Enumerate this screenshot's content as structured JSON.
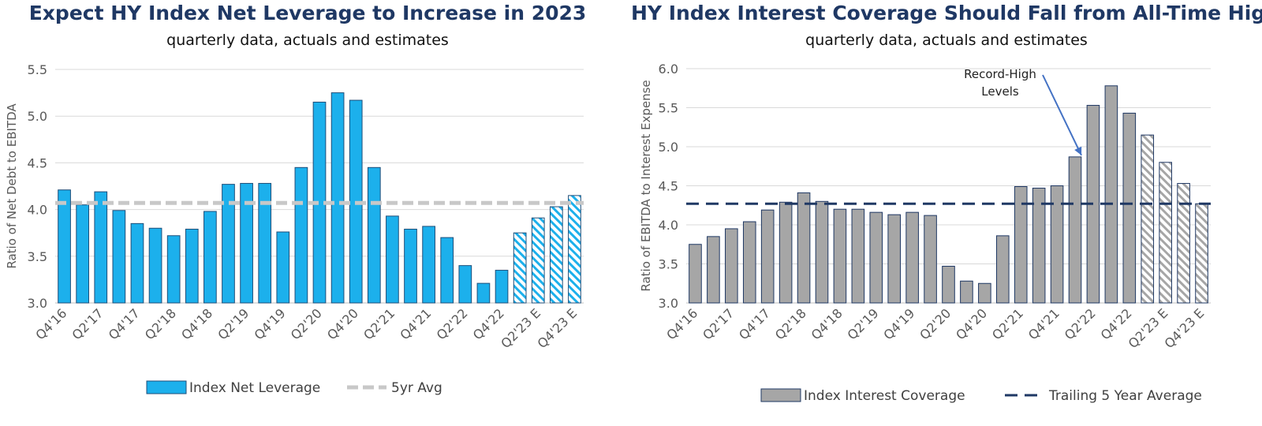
{
  "chart_data": [
    {
      "type": "bar",
      "title": "Expect HY Index Net Leverage to Increase in 2023",
      "subtitle": "quarterly data, actuals and estimates",
      "ylabel": "Ratio of Net Debt to EBITDA",
      "xlabel": "",
      "ylim": [
        3.0,
        5.5
      ],
      "yticks": [
        "3.0",
        "3.5",
        "4.0",
        "4.5",
        "5.0",
        "5.5"
      ],
      "grid": true,
      "legend_position": "bottom",
      "categories": [
        "Q4'16",
        "Q1'17",
        "Q2'17",
        "Q3'17",
        "Q4'17",
        "Q1'18",
        "Q2'18",
        "Q3'18",
        "Q4'18",
        "Q1'19",
        "Q2'19",
        "Q3'19",
        "Q4'19",
        "Q1'20",
        "Q2'20",
        "Q3'20",
        "Q4'20",
        "Q1'21",
        "Q2'21",
        "Q3'21",
        "Q4'21",
        "Q1'22",
        "Q2'22",
        "Q3'22",
        "Q4'22",
        "Q1'23 E",
        "Q2'23 E",
        "Q3'23 E",
        "Q4'23 E"
      ],
      "visible_tick_labels": [
        "Q4'16",
        "Q2'17",
        "Q4'17",
        "Q2'18",
        "Q4'18",
        "Q2'19",
        "Q4'19",
        "Q2'20",
        "Q4'20",
        "Q2'21",
        "Q4'21",
        "Q2'22",
        "Q4'22",
        "Q2'23 E",
        "Q4'23 E"
      ],
      "series": [
        {
          "name": "Index Net Leverage",
          "values": [
            4.21,
            4.05,
            4.19,
            3.99,
            3.85,
            3.8,
            3.72,
            3.79,
            3.98,
            4.27,
            4.28,
            4.28,
            3.76,
            4.45,
            5.15,
            5.25,
            5.17,
            4.45,
            3.93,
            3.79,
            3.82,
            3.7,
            3.4,
            3.21,
            3.35,
            3.75,
            3.91,
            4.03,
            4.15
          ],
          "estimate_start_index": 25,
          "color": "#1cb0ec",
          "edge_color": "#1f4e79"
        },
        {
          "name": "5yr Avg",
          "value": 4.07,
          "color": "#c8c8c8",
          "style": "dashed"
        }
      ]
    },
    {
      "type": "bar",
      "title": "HY Index Interest Coverage Should Fall from All-Time Highs",
      "subtitle": "quarterly data, actuals and estimates",
      "ylabel": "Ratio of EBITDA to Interest Expense",
      "xlabel": "",
      "ylim": [
        3.0,
        6.0
      ],
      "yticks": [
        "3.0",
        "3.5",
        "4.0",
        "4.5",
        "5.0",
        "5.5",
        "6.0"
      ],
      "grid": true,
      "legend_position": "bottom",
      "annotation": {
        "lines": [
          "Record-High",
          "Levels"
        ],
        "target_index": 21
      },
      "categories": [
        "Q4'16",
        "Q1'17",
        "Q2'17",
        "Q3'17",
        "Q4'17",
        "Q1'18",
        "Q2'18",
        "Q3'18",
        "Q4'18",
        "Q1'19",
        "Q2'19",
        "Q3'19",
        "Q4'19",
        "Q1'20",
        "Q2'20",
        "Q3'20",
        "Q4'20",
        "Q1'21",
        "Q2'21",
        "Q3'21",
        "Q4'21",
        "Q1'22",
        "Q2'22",
        "Q3'22",
        "Q4'22",
        "Q1'23 E",
        "Q2'23 E",
        "Q3'23 E",
        "Q4'23 E"
      ],
      "visible_tick_labels": [
        "Q4'16",
        "Q2'17",
        "Q4'17",
        "Q2'18",
        "Q4'18",
        "Q2'19",
        "Q4'19",
        "Q2'20",
        "Q4'20",
        "Q2'21",
        "Q4'21",
        "Q2'22",
        "Q4'22",
        "Q2'23 E",
        "Q4'23 E"
      ],
      "series": [
        {
          "name": "Index Interest Coverage",
          "values": [
            3.75,
            3.85,
            3.95,
            4.04,
            4.19,
            4.29,
            4.41,
            4.3,
            4.2,
            4.2,
            4.16,
            4.13,
            4.16,
            4.12,
            3.47,
            3.28,
            3.25,
            3.86,
            4.49,
            4.47,
            4.5,
            4.87,
            5.53,
            5.78,
            5.43,
            5.15,
            4.8,
            4.53,
            4.27
          ],
          "estimate_start_index": 25,
          "color": "#a6a6a6",
          "edge_color": "#1f3864"
        },
        {
          "name": "Trailing 5 Year Average",
          "value": 4.27,
          "color": "#1f3864",
          "style": "dashed"
        }
      ]
    }
  ]
}
